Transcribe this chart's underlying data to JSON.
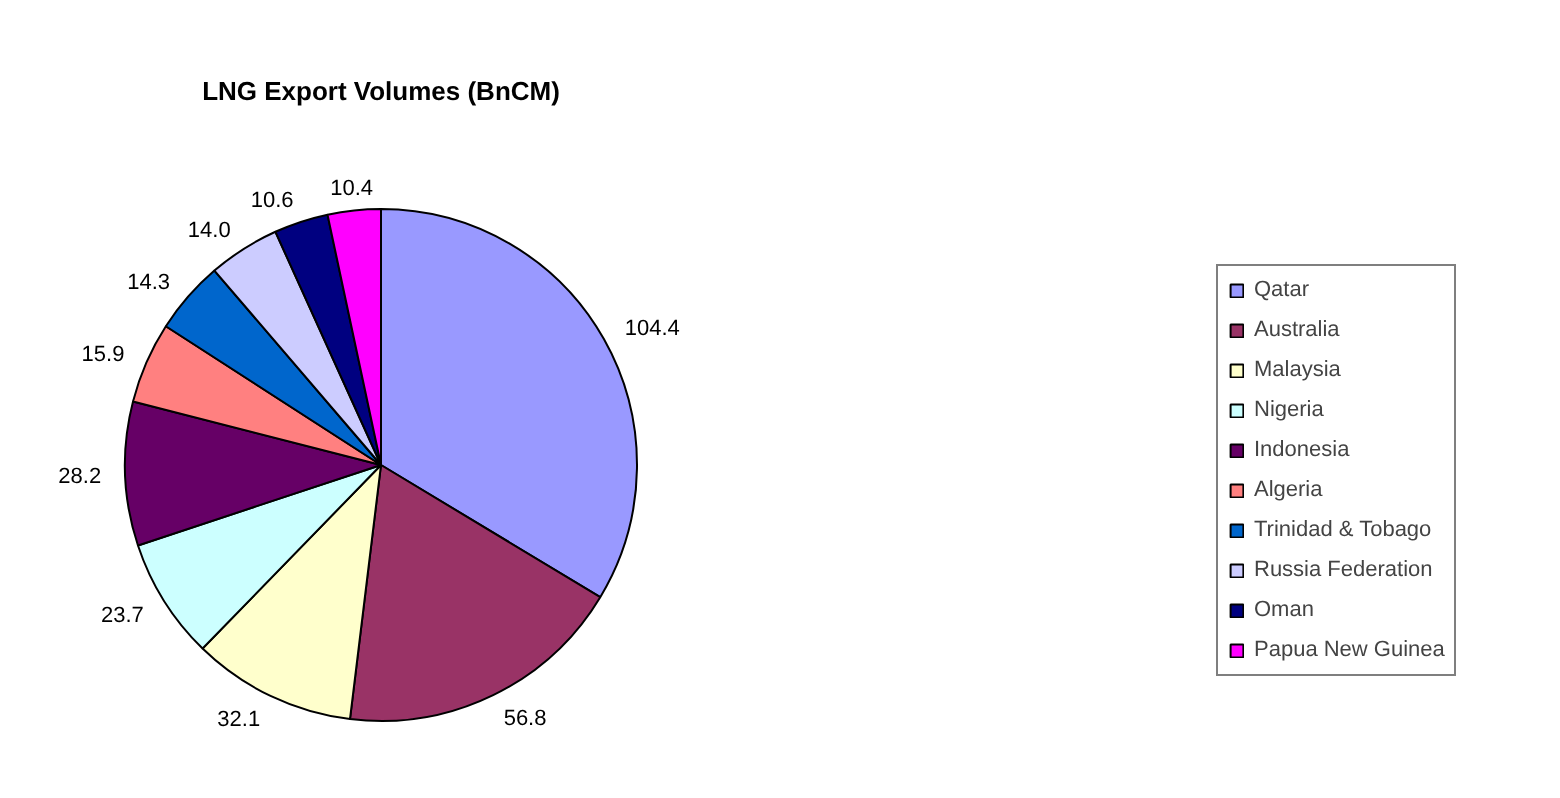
{
  "chart_data": {
    "type": "pie",
    "title": "LNG Export Volumes (BnCM)",
    "categories": [
      "Qatar",
      "Australia",
      "Malaysia",
      "Nigeria",
      "Indonesia",
      "Algeria",
      "Trinidad & Tobago",
      "Russia Federation",
      "Oman",
      "Papua New Guinea"
    ],
    "values": [
      104.4,
      56.8,
      32.1,
      23.7,
      28.2,
      15.9,
      14.3,
      14.0,
      10.6,
      10.4
    ],
    "colors": [
      "#9999ff",
      "#993366",
      "#ffffcc",
      "#ccffff",
      "#660066",
      "#ff8080",
      "#0066cc",
      "#ccccff",
      "#000080",
      "#ff00ff"
    ],
    "value_labels": [
      "104.4",
      "56.8",
      "32.1",
      "23.7",
      "28.2",
      "15.9",
      "14.3",
      "14.0",
      "10.6",
      "10.4"
    ],
    "legend": "right"
  }
}
